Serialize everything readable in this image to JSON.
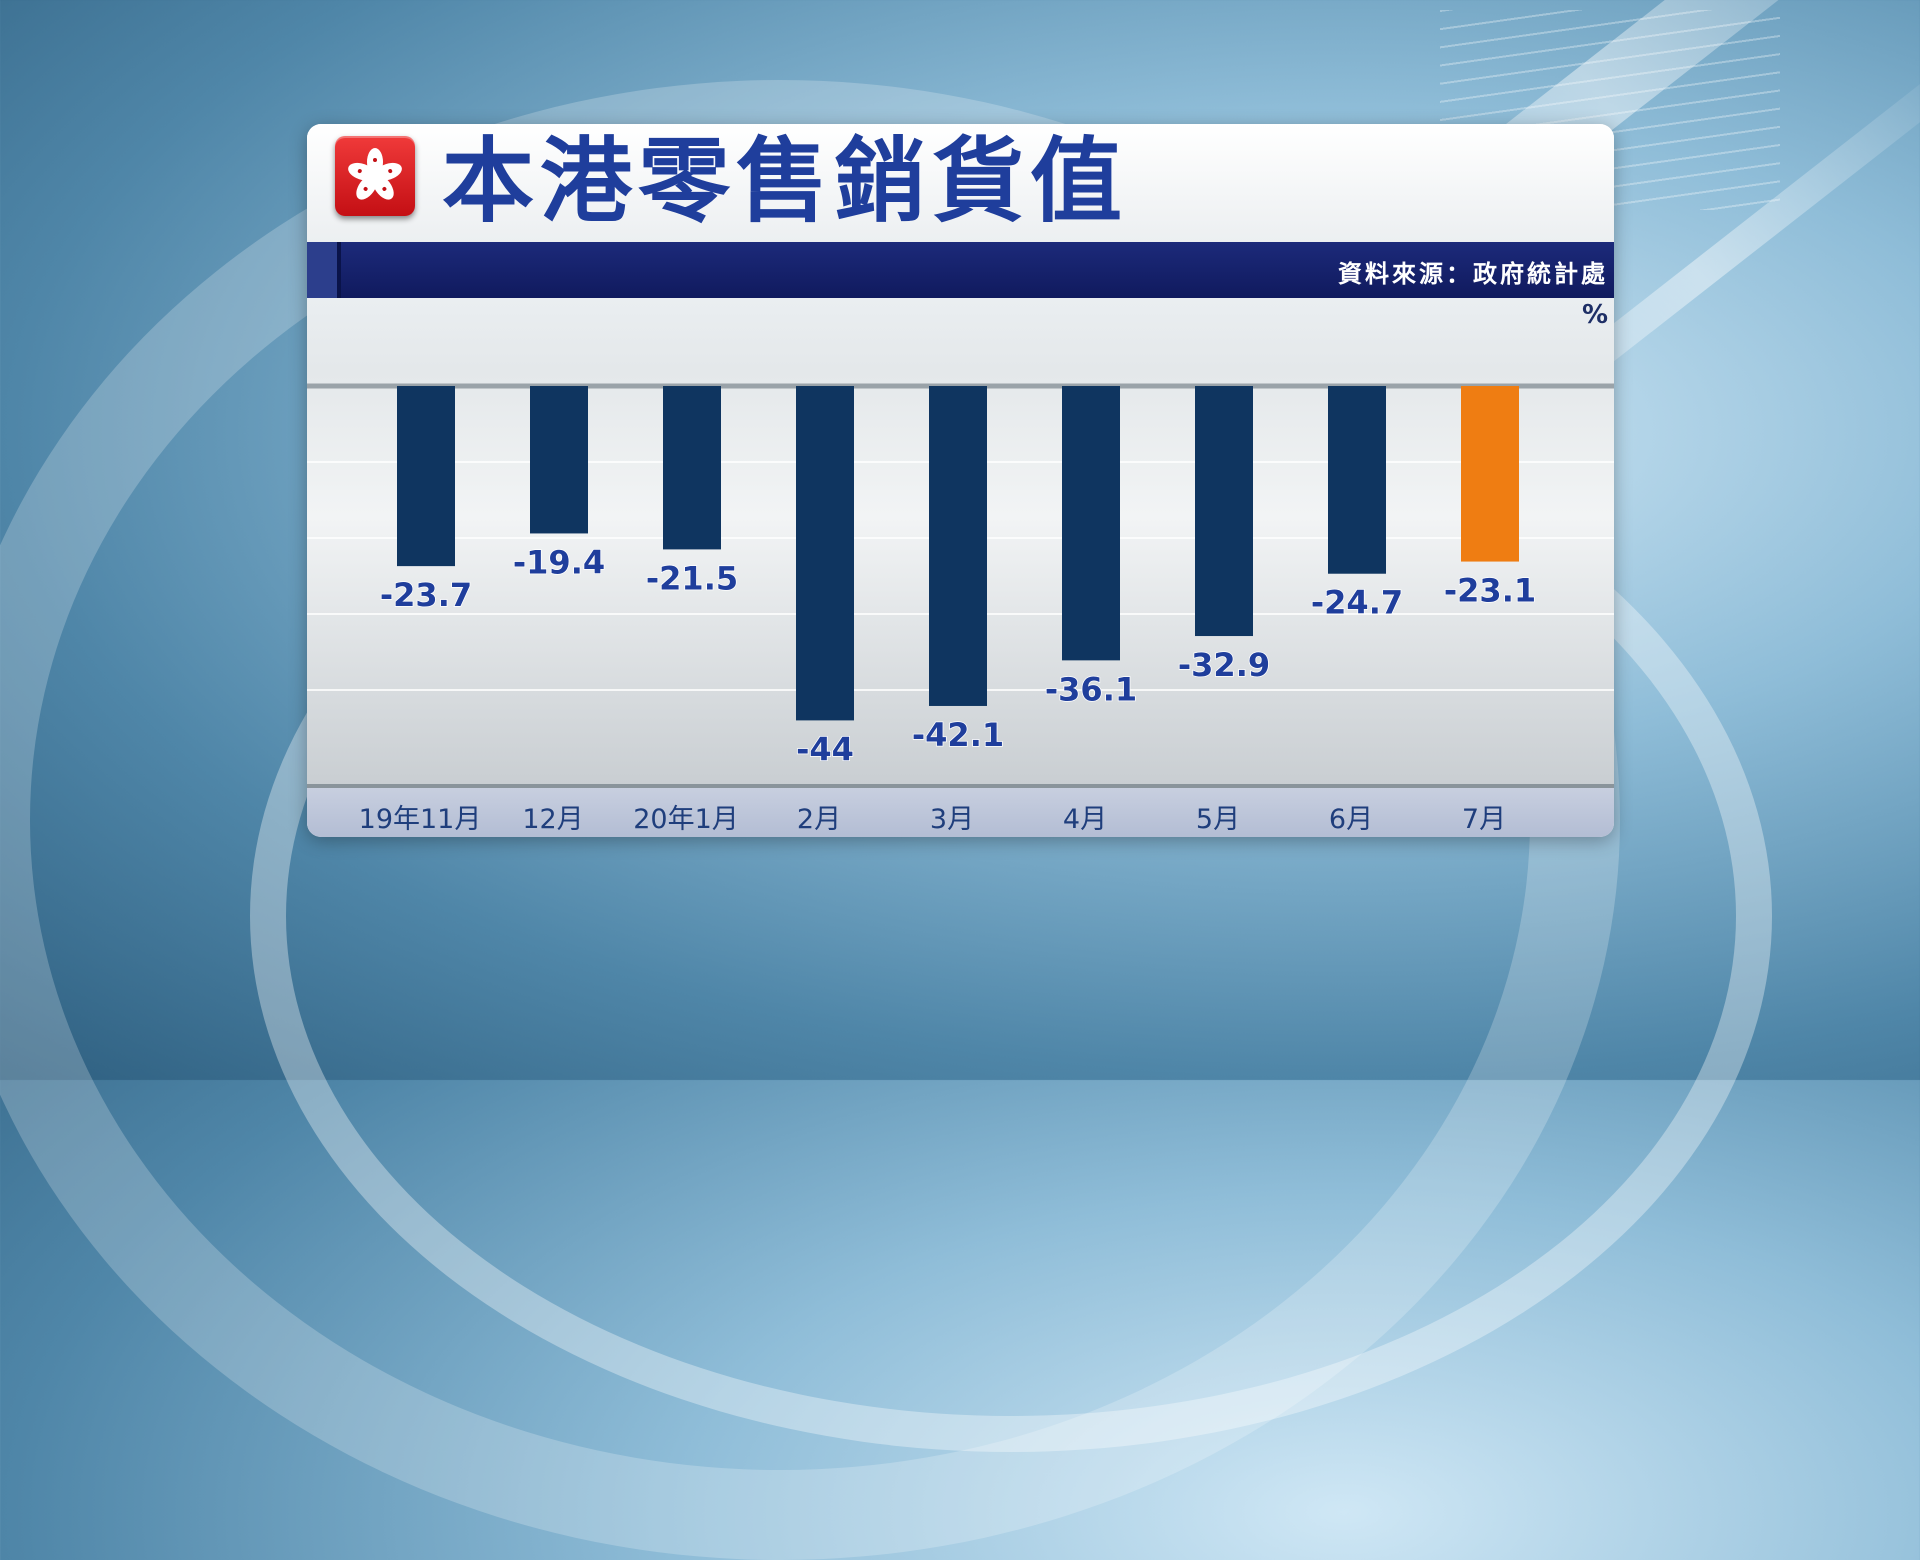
{
  "header": {
    "title": "本港零售銷貨值",
    "source": "資料來源：政府統計處",
    "unit": "%"
  },
  "colors": {
    "bar": "#0f3560",
    "highlight": "#ef7d12",
    "label": "#1f3e9c",
    "title": "#1f3e9c"
  },
  "chart_data": {
    "type": "bar",
    "title": "本港零售銷貨值",
    "ylabel": "%",
    "categories": [
      "19年11月",
      "12月",
      "20年1月",
      "2月",
      "3月",
      "4月",
      "5月",
      "6月",
      "7月"
    ],
    "values": [
      -23.7,
      -19.4,
      -21.5,
      -44,
      -42.1,
      -36.1,
      -32.9,
      -24.7,
      -23.1
    ],
    "data_labels": [
      "-23.7",
      "-19.4",
      "-21.5",
      "-44",
      "-42.1",
      "-36.1",
      "-32.9",
      "-24.7",
      "-23.1"
    ],
    "highlight_index": 8,
    "ylim": [
      -50,
      0
    ],
    "grid": true
  }
}
